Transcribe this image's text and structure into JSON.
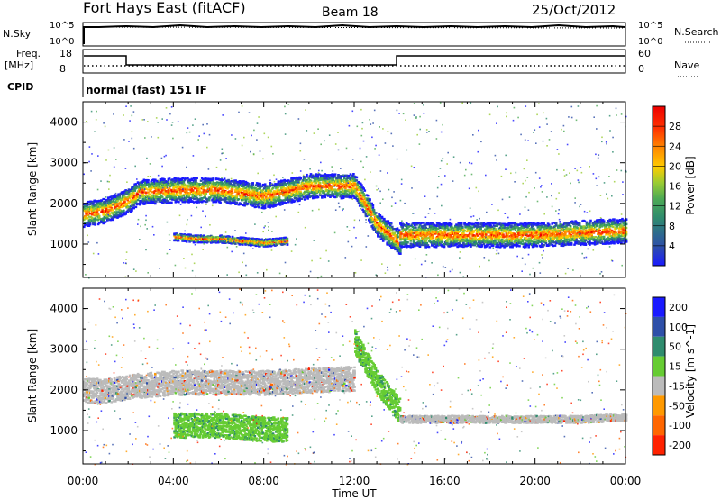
{
  "header": {
    "station": "Fort Hays East (fitACF)",
    "beam": "Beam 18",
    "date": "25/Oct/2012"
  },
  "info_panels": {
    "nsky": {
      "label": "N.Sky",
      "tick_top": "10^5",
      "tick_bottom": "10^0",
      "right_label": "N.Search",
      "right_tick_top": "10^5",
      "right_tick_bottom": "10^0"
    },
    "freq": {
      "label_line1": "Freq.",
      "label_line2": "[MHz]",
      "tick_top": "18",
      "tick_bottom": "8",
      "right_label": "Nave",
      "right_tick_top": "60",
      "right_tick_bottom": "0"
    },
    "cpid": {
      "label": "CPID",
      "text": "normal (fast) 151 IF"
    }
  },
  "colors": {
    "power_scale": [
      "#1a1aff",
      "#2e4fa8",
      "#2f8c6e",
      "#4daa55",
      "#9acc33",
      "#ffcc00",
      "#ff8800",
      "#ff3300",
      "#ee0000"
    ],
    "velocity_scale": [
      "#1a1aff",
      "#2e4fa8",
      "#2f8c6e",
      "#66cc33",
      "#bbbbbb",
      "#ff9900",
      "#ff6600",
      "#ff2200"
    ],
    "ground_scatter": "#bbbbbb"
  },
  "chart_data": [
    {
      "type": "heatmap",
      "panel": "power",
      "xlabel": "",
      "ylabel": "Slant Range [km]",
      "x_ticks": [
        "00:00",
        "04:00",
        "08:00",
        "12:00",
        "16:00",
        "20:00",
        "00:00"
      ],
      "y_ticks": [
        "1000",
        "2000",
        "3000",
        "4000"
      ],
      "ylim": [
        180,
        4500
      ],
      "colorbar": {
        "title": "Power [dB]",
        "ticks": [
          "4",
          "8",
          "12",
          "16",
          "20",
          "24",
          "28"
        ]
      },
      "echo_bands": [
        {
          "x": [
            0,
            1,
            2,
            2.5,
            4,
            6,
            8,
            10,
            12,
            13,
            14
          ],
          "range_km": [
            1750,
            1850,
            2100,
            2300,
            2350,
            2350,
            2200,
            2450,
            2450,
            1500,
            1050
          ]
        },
        {
          "x": [
            14,
            16,
            18,
            20,
            22,
            24
          ],
          "range_km": [
            1250,
            1250,
            1250,
            1250,
            1300,
            1350
          ]
        },
        {
          "x": [
            4,
            5,
            6,
            7,
            8,
            9
          ],
          "range_km": [
            1200,
            1150,
            1150,
            1100,
            1050,
            1100
          ]
        }
      ]
    },
    {
      "type": "heatmap",
      "panel": "velocity",
      "xlabel": "Time UT",
      "ylabel": "Slant Range [km]",
      "x_ticks": [
        "00:00",
        "04:00",
        "08:00",
        "12:00",
        "16:00",
        "20:00",
        "00:00"
      ],
      "y_ticks": [
        "1000",
        "2000",
        "3000",
        "4000"
      ],
      "ylim": [
        180,
        4500
      ],
      "colorbar": {
        "title": "Velocity [m s^-1]",
        "ticks": [
          "200",
          "100",
          "50",
          "15",
          "-15",
          "-50",
          "-100",
          "-200"
        ]
      },
      "echo_bands": [
        {
          "x": [
            0,
            1,
            2,
            4,
            8,
            12
          ],
          "range_km": [
            2000,
            2000,
            2100,
            2200,
            2200,
            2300
          ],
          "class": "ground scatter"
        },
        {
          "x": [
            12,
            13,
            14
          ],
          "range_km": [
            3200,
            2200,
            1500
          ],
          "class": "positive velocity"
        },
        {
          "x": [
            14,
            16,
            18,
            20,
            22,
            24
          ],
          "range_km": [
            1300,
            1300,
            1300,
            1300,
            1300,
            1350
          ],
          "class": "ground scatter"
        },
        {
          "x": [
            4,
            6,
            8,
            9
          ],
          "range_km": [
            1150,
            1150,
            1050,
            1050
          ],
          "class": "positive velocity"
        }
      ]
    }
  ]
}
